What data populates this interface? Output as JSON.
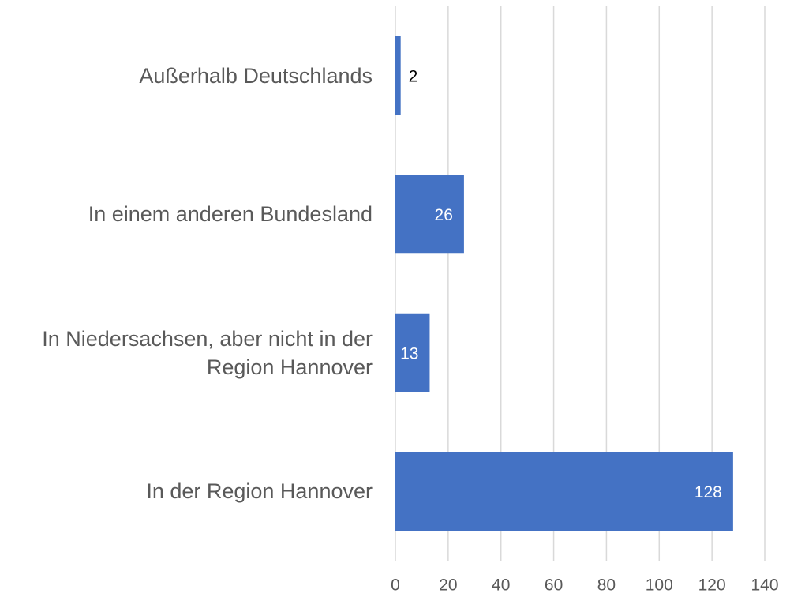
{
  "chart_data": {
    "type": "bar",
    "orientation": "horizontal",
    "categories": [
      "Außerhalb Deutschlands",
      "In einem anderen Bundesland",
      "In Niedersachsen, aber nicht in der Region Hannover",
      "In der Region Hannover"
    ],
    "values": [
      2,
      26,
      13,
      128
    ],
    "color": "#4472c4",
    "xlim": [
      0,
      140
    ],
    "xticks": [
      0,
      20,
      40,
      60,
      80,
      100,
      120,
      140
    ],
    "grid": true
  }
}
